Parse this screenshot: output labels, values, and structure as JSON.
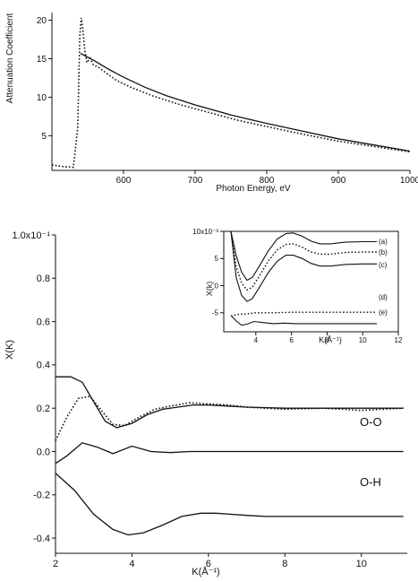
{
  "chart_data": [
    {
      "id": "top",
      "type": "line",
      "xlabel": "Photon Energy, eV",
      "ylabel": "Attenuation Coefficient",
      "xlim": [
        500,
        1000
      ],
      "ylim": [
        0.5,
        21
      ],
      "xticks": [
        "600",
        "700",
        "800",
        "900",
        "1000"
      ],
      "yticks": [
        "5",
        "10",
        "15",
        "20"
      ],
      "series": [
        {
          "style": "dotted",
          "x": [
            500,
            515,
            530,
            536,
            539,
            541,
            543,
            546,
            549,
            553,
            558,
            565,
            575,
            590,
            610,
            640,
            680,
            720,
            760,
            800,
            850,
            900,
            950,
            1000
          ],
          "y": [
            1.2,
            1.0,
            0.9,
            6,
            18,
            20.3,
            19,
            16,
            14.5,
            15.1,
            14.2,
            13.9,
            13.2,
            12.2,
            11.3,
            10.2,
            9.0,
            8.0,
            7.0,
            6.2,
            5.2,
            4.3,
            3.6,
            2.9
          ]
        },
        {
          "style": "solid",
          "x": [
            540,
            560,
            580,
            600,
            630,
            660,
            700,
            750,
            800,
            850,
            900,
            950,
            1000
          ],
          "y": [
            15.7,
            14.7,
            13.6,
            12.6,
            11.3,
            10.2,
            9.0,
            7.7,
            6.6,
            5.6,
            4.6,
            3.8,
            3.0
          ]
        }
      ]
    },
    {
      "id": "main",
      "type": "line",
      "xlabel": "K(Å⁻¹)",
      "ylabel": "X(K)",
      "xlim": [
        2,
        11.2
      ],
      "ylim": [
        -0.47,
        1.0
      ],
      "xticks": [
        "2",
        "4",
        "6",
        "8",
        "10"
      ],
      "yticks": [
        "1.0x10⁻¹",
        "0.8",
        "0.6",
        "0.4",
        "0.2",
        "0.0",
        "-0.2",
        "-0.4"
      ],
      "labels": [
        "O-O",
        "O-H"
      ],
      "series": [
        {
          "style": "solid",
          "x": [
            2,
            2.4,
            2.7,
            3.0,
            3.3,
            3.6,
            4.0,
            4.4,
            4.8,
            5.2,
            5.6,
            6.0,
            6.5,
            7,
            8,
            9,
            10,
            11.1
          ],
          "y": [
            0.345,
            0.345,
            0.32,
            0.23,
            0.14,
            0.11,
            0.13,
            0.17,
            0.195,
            0.205,
            0.215,
            0.215,
            0.21,
            0.205,
            0.2,
            0.2,
            0.2,
            0.2
          ]
        },
        {
          "style": "dotted",
          "x": [
            2,
            2.3,
            2.6,
            2.9,
            3.2,
            3.5,
            3.8,
            4.2,
            4.6,
            5.0,
            5.5,
            6.0,
            6.5,
            7,
            8,
            9,
            10,
            11.1
          ],
          "y": [
            0.05,
            0.16,
            0.245,
            0.255,
            0.19,
            0.125,
            0.12,
            0.16,
            0.195,
            0.21,
            0.225,
            0.22,
            0.215,
            0.205,
            0.195,
            0.2,
            0.19,
            0.2
          ]
        },
        {
          "style": "solid",
          "x": [
            2,
            2.3,
            2.7,
            3.1,
            3.5,
            4.0,
            4.5,
            5.0,
            5.5,
            6,
            7,
            8,
            9,
            10,
            11.1
          ],
          "y": [
            -0.055,
            -0.02,
            0.04,
            0.02,
            -0.01,
            0.025,
            0.0,
            -0.005,
            0.0,
            0.0,
            0.0,
            0.0,
            0.0,
            0.0,
            0.0
          ]
        },
        {
          "style": "solid",
          "x": [
            2,
            2.5,
            3.0,
            3.5,
            3.9,
            4.3,
            4.8,
            5.3,
            5.8,
            6.2,
            6.6,
            7,
            7.5,
            8,
            9,
            10,
            11.1
          ],
          "y": [
            -0.1,
            -0.18,
            -0.29,
            -0.36,
            -0.385,
            -0.375,
            -0.34,
            -0.3,
            -0.285,
            -0.285,
            -0.29,
            -0.295,
            -0.3,
            -0.3,
            -0.3,
            -0.3,
            -0.3
          ]
        }
      ]
    },
    {
      "id": "inset",
      "type": "line",
      "xlabel": "K(Å⁻¹)",
      "ylabel": "X(k)",
      "xlim": [
        2.2,
        12
      ],
      "ylim": [
        -8.5,
        10
      ],
      "xticks": [
        "4",
        "6",
        "8",
        "10",
        "12"
      ],
      "yticks": [
        "10x10⁻³",
        "5",
        "0",
        "-5"
      ],
      "labels": [
        "(a)",
        "(b)",
        "(c)",
        "(d)",
        "(e)"
      ],
      "series": [
        {
          "style": "solid",
          "x": [
            2.6,
            2.9,
            3.2,
            3.5,
            3.8,
            4.2,
            4.7,
            5.2,
            5.7,
            6.1,
            6.6,
            7.1,
            7.6,
            8.2,
            9,
            10,
            10.8
          ],
          "y": [
            10,
            5.5,
            2.5,
            1,
            1.5,
            3.6,
            6.4,
            8.6,
            9.6,
            9.7,
            9.1,
            8.2,
            7.7,
            7.7,
            8.0,
            8.1,
            8.1
          ]
        },
        {
          "style": "dotted",
          "x": [
            2.6,
            2.9,
            3.2,
            3.5,
            3.8,
            4.2,
            4.7,
            5.2,
            5.7,
            6.1,
            6.6,
            7.1,
            7.6,
            8.2,
            9,
            10,
            10.8
          ],
          "y": [
            10,
            3.5,
            0.5,
            -0.8,
            -0.3,
            1.8,
            4.5,
            6.6,
            7.6,
            7.7,
            7.1,
            6.2,
            5.8,
            5.8,
            6.1,
            6.2,
            6.2
          ]
        },
        {
          "style": "solid",
          "x": [
            2.6,
            2.9,
            3.2,
            3.5,
            3.8,
            4.2,
            4.7,
            5.2,
            5.7,
            6.1,
            6.6,
            7.1,
            7.6,
            8.2,
            9,
            10,
            10.8
          ],
          "y": [
            10,
            1.5,
            -1.8,
            -2.9,
            -2.4,
            -0.3,
            2.4,
            4.5,
            5.6,
            5.6,
            5.0,
            4.1,
            3.6,
            3.6,
            3.9,
            4.0,
            4.0
          ]
        },
        {
          "style": "dotted",
          "x": [
            2.6,
            3,
            3.5,
            4,
            5,
            6,
            7,
            8,
            9,
            10,
            10.8
          ],
          "y": [
            -5.6,
            -5.3,
            -5.2,
            -5.0,
            -5.0,
            -4.9,
            -4.9,
            -4.9,
            -4.9,
            -4.9,
            -4.9
          ]
        },
        {
          "style": "solid",
          "x": [
            2.6,
            2.9,
            3.2,
            3.5,
            3.9,
            4.4,
            5,
            5.6,
            6.2,
            7,
            8,
            9,
            10,
            10.8
          ],
          "y": [
            -5.5,
            -6.5,
            -7.3,
            -7.1,
            -6.6,
            -6.8,
            -7.0,
            -6.9,
            -7.0,
            -7.0,
            -7.0,
            -7.0,
            -7.0,
            -7.0
          ]
        }
      ]
    }
  ]
}
